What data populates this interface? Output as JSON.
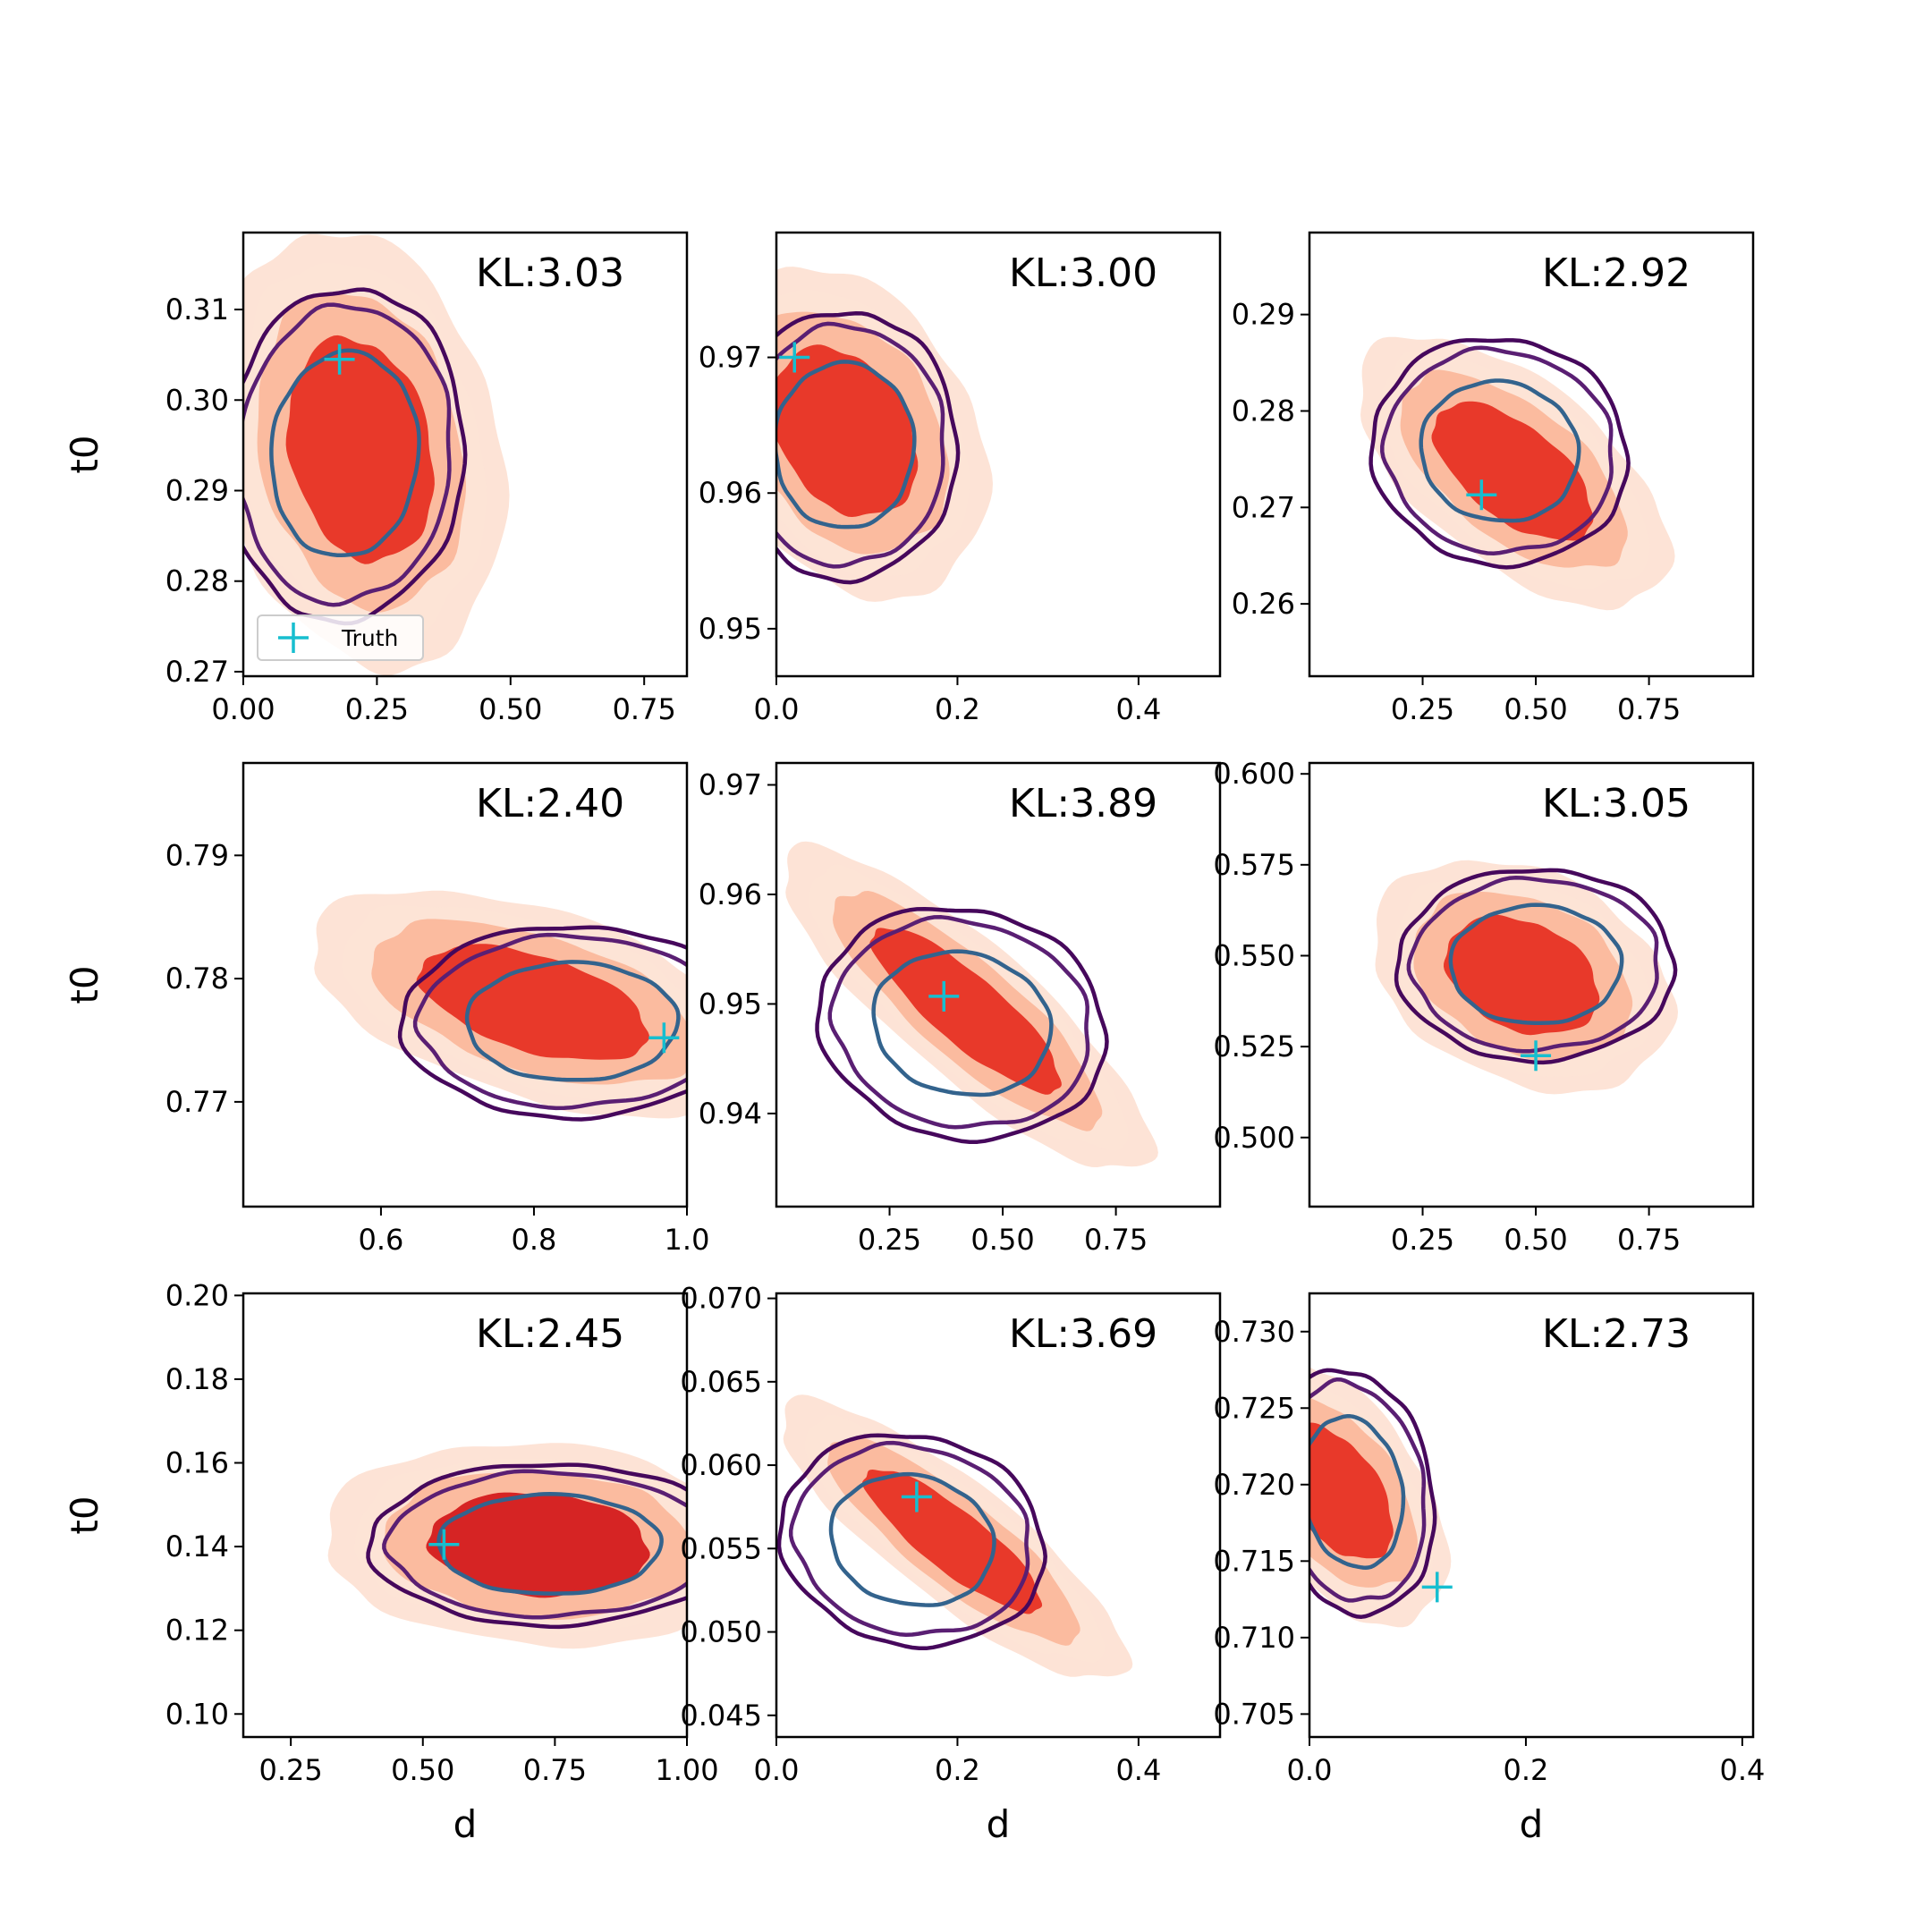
{
  "chart_data": {
    "type": "grid of 2D density contour plots",
    "layout": {
      "rows": 3,
      "cols": 3
    },
    "xlabel": "d",
    "ylabel": "t0",
    "legend": {
      "label": "Truth",
      "placement": "lower-left of first panel",
      "marker": "+",
      "color": "#17becf"
    },
    "colors": {
      "filled_light": "#fde3d6",
      "filled_mid": "#fbbb9f",
      "filled_dark": "#e8392a",
      "filled_darkest": "#d62424",
      "line_outer": "#46085c",
      "line_mid": "#5a1f73",
      "line_inner": "#33638d",
      "truth_marker": "#17becf"
    },
    "panels": [
      {
        "kl_text": "KL:3.03",
        "xlim": [
          0.0,
          0.83
        ],
        "ylim": [
          0.2695,
          0.3185
        ],
        "xticks": [
          {
            "v": 0.0,
            "label": "0.00"
          },
          {
            "v": 0.25,
            "label": "0.25"
          },
          {
            "v": 0.5,
            "label": "0.50"
          },
          {
            "v": 0.75,
            "label": "0.75"
          }
        ],
        "yticks": [
          {
            "v": 0.27,
            "label": "0.27"
          },
          {
            "v": 0.28,
            "label": "0.28"
          },
          {
            "v": 0.29,
            "label": "0.29"
          },
          {
            "v": 0.3,
            "label": "0.30"
          },
          {
            "v": 0.31,
            "label": "0.31"
          }
        ],
        "truth": [
          0.18,
          0.3045
        ],
        "filled": {
          "cx": 0.22,
          "cy": 0.2945,
          "sx": 0.105,
          "sy": 0.0095,
          "rho": -0.2
        },
        "lines": {
          "cx": 0.19,
          "cy": 0.294,
          "sx": 0.095,
          "sy": 0.0078,
          "rho": 0.05
        }
      },
      {
        "kl_text": "KL:3.00",
        "xlim": [
          0.0,
          0.49
        ],
        "ylim": [
          0.9465,
          0.9792
        ],
        "xticks": [
          {
            "v": 0.0,
            "label": "0.0"
          },
          {
            "v": 0.2,
            "label": "0.2"
          },
          {
            "v": 0.4,
            "label": "0.4"
          }
        ],
        "yticks": [
          {
            "v": 0.95,
            "label": "0.95"
          },
          {
            "v": 0.96,
            "label": "0.96"
          },
          {
            "v": 0.97,
            "label": "0.97"
          }
        ],
        "truth": [
          0.02,
          0.97
        ],
        "filled": {
          "cx": 0.075,
          "cy": 0.9645,
          "sx": 0.062,
          "sy": 0.0048,
          "rho": -0.3
        },
        "lines": {
          "cx": 0.075,
          "cy": 0.9635,
          "sx": 0.053,
          "sy": 0.0042,
          "rho": 0.0
        }
      },
      {
        "kl_text": "KL:2.92",
        "xlim": [
          0.0,
          0.98
        ],
        "ylim": [
          0.2525,
          0.2985
        ],
        "xticks": [
          {
            "v": 0.25,
            "label": "0.25"
          },
          {
            "v": 0.5,
            "label": "0.50"
          },
          {
            "v": 0.75,
            "label": "0.75"
          }
        ],
        "yticks": [
          {
            "v": 0.26,
            "label": "0.26"
          },
          {
            "v": 0.27,
            "label": "0.27"
          },
          {
            "v": 0.28,
            "label": "0.28"
          },
          {
            "v": 0.29,
            "label": "0.29"
          }
        ],
        "truth": [
          0.38,
          0.2713
        ],
        "filled": {
          "cx": 0.45,
          "cy": 0.2737,
          "sx": 0.135,
          "sy": 0.0055,
          "rho": -0.6
        },
        "lines": {
          "cx": 0.42,
          "cy": 0.2758,
          "sx": 0.12,
          "sy": 0.005,
          "rho": -0.05
        }
      },
      {
        "kl_text": "KL:2.40",
        "xlim": [
          0.42,
          1.0
        ],
        "ylim": [
          0.7615,
          0.7975
        ],
        "xticks": [
          {
            "v": 0.6,
            "label": "0.6"
          },
          {
            "v": 0.8,
            "label": "0.8"
          },
          {
            "v": 1.0,
            "label": "1.0"
          }
        ],
        "yticks": [
          {
            "v": 0.77,
            "label": "0.77"
          },
          {
            "v": 0.78,
            "label": "0.78"
          },
          {
            "v": 0.79,
            "label": "0.79"
          }
        ],
        "truth": [
          0.97,
          0.7752
        ],
        "filled": {
          "cx": 0.8,
          "cy": 0.778,
          "sx": 0.115,
          "sy": 0.0036,
          "rho": -0.5
        },
        "lines": {
          "cx": 0.85,
          "cy": 0.7765,
          "sx": 0.095,
          "sy": 0.0033,
          "rho": 0.0
        }
      },
      {
        "kl_text": "KL:3.89",
        "xlim": [
          0.0,
          0.98
        ],
        "ylim": [
          0.9315,
          0.972
        ],
        "xticks": [
          {
            "v": 0.25,
            "label": "0.25"
          },
          {
            "v": 0.5,
            "label": "0.50"
          },
          {
            "v": 0.75,
            "label": "0.75"
          }
        ],
        "yticks": [
          {
            "v": 0.94,
            "label": "0.94"
          },
          {
            "v": 0.95,
            "label": "0.95"
          },
          {
            "v": 0.96,
            "label": "0.96"
          },
          {
            "v": 0.97,
            "label": "0.97"
          }
        ],
        "truth": [
          0.37,
          0.9507
        ],
        "filled": {
          "cx": 0.42,
          "cy": 0.9495,
          "sx": 0.16,
          "sy": 0.0058,
          "rho": -0.85
        },
        "lines": {
          "cx": 0.41,
          "cy": 0.9482,
          "sx": 0.135,
          "sy": 0.0045,
          "rho": -0.1
        }
      },
      {
        "kl_text": "KL:3.05",
        "xlim": [
          0.0,
          0.98
        ],
        "ylim": [
          0.481,
          0.603
        ],
        "xticks": [
          {
            "v": 0.25,
            "label": "0.25"
          },
          {
            "v": 0.5,
            "label": "0.50"
          },
          {
            "v": 0.75,
            "label": "0.75"
          }
        ],
        "yticks": [
          {
            "v": 0.5,
            "label": "0.500"
          },
          {
            "v": 0.525,
            "label": "0.525"
          },
          {
            "v": 0.55,
            "label": "0.550"
          },
          {
            "v": 0.575,
            "label": "0.575"
          },
          {
            "v": 0.6,
            "label": "0.600"
          }
        ],
        "truth": [
          0.5,
          0.5225
        ],
        "filled": {
          "cx": 0.47,
          "cy": 0.5445,
          "sx": 0.13,
          "sy": 0.0125,
          "rho": -0.3
        },
        "lines": {
          "cx": 0.5,
          "cy": 0.5475,
          "sx": 0.13,
          "sy": 0.0112,
          "rho": 0.0
        }
      },
      {
        "kl_text": "KL:2.45",
        "xlim": [
          0.16,
          1.0
        ],
        "ylim": [
          0.0945,
          0.2005
        ],
        "xticks": [
          {
            "v": 0.25,
            "label": "0.25"
          },
          {
            "v": 0.5,
            "label": "0.50"
          },
          {
            "v": 0.75,
            "label": "0.75"
          },
          {
            "v": 1.0,
            "label": "1.00"
          }
        ],
        "yticks": [
          {
            "v": 0.1,
            "label": "0.10"
          },
          {
            "v": 0.12,
            "label": "0.12"
          },
          {
            "v": 0.14,
            "label": "0.14"
          },
          {
            "v": 0.16,
            "label": "0.16"
          },
          {
            "v": 0.18,
            "label": "0.18"
          },
          {
            "v": 0.2,
            "label": "0.20"
          }
        ],
        "truth": [
          0.54,
          0.1405
        ],
        "filled": {
          "cx": 0.72,
          "cy": 0.1405,
          "sx": 0.16,
          "sy": 0.0095,
          "rho": -0.1
        },
        "lines": {
          "cx": 0.74,
          "cy": 0.1405,
          "sx": 0.145,
          "sy": 0.0082,
          "rho": 0.0
        }
      },
      {
        "kl_text": "KL:3.69",
        "xlim": [
          0.0,
          0.49
        ],
        "ylim": [
          0.0437,
          0.0703
        ],
        "xticks": [
          {
            "v": 0.0,
            "label": "0.0"
          },
          {
            "v": 0.2,
            "label": "0.2"
          },
          {
            "v": 0.4,
            "label": "0.4"
          }
        ],
        "yticks": [
          {
            "v": 0.045,
            "label": "0.045"
          },
          {
            "v": 0.05,
            "label": "0.050"
          },
          {
            "v": 0.055,
            "label": "0.055"
          },
          {
            "v": 0.06,
            "label": "0.060"
          },
          {
            "v": 0.065,
            "label": "0.065"
          },
          {
            "v": 0.07,
            "label": "0.070"
          }
        ],
        "truth": [
          0.155,
          0.0581
        ],
        "filled": {
          "cx": 0.195,
          "cy": 0.0555,
          "sx": 0.075,
          "sy": 0.0033,
          "rho": -0.85
        },
        "lines": {
          "cx": 0.15,
          "cy": 0.0555,
          "sx": 0.062,
          "sy": 0.0027,
          "rho": -0.1
        }
      },
      {
        "kl_text": "KL:2.73",
        "xlim": [
          0.0,
          0.41
        ],
        "ylim": [
          0.7035,
          0.7325
        ],
        "xticks": [
          {
            "v": 0.0,
            "label": "0.0"
          },
          {
            "v": 0.2,
            "label": "0.2"
          },
          {
            "v": 0.4,
            "label": "0.4"
          }
        ],
        "yticks": [
          {
            "v": 0.705,
            "label": "0.705"
          },
          {
            "v": 0.71,
            "label": "0.710"
          },
          {
            "v": 0.715,
            "label": "0.715"
          },
          {
            "v": 0.72,
            "label": "0.720"
          },
          {
            "v": 0.725,
            "label": "0.725"
          },
          {
            "v": 0.73,
            "label": "0.730"
          }
        ],
        "truth": [
          0.118,
          0.7133
        ],
        "filled": {
          "cx": 0.025,
          "cy": 0.7195,
          "sx": 0.04,
          "sy": 0.0034,
          "rho": -0.5
        },
        "lines": {
          "cx": 0.04,
          "cy": 0.7195,
          "sx": 0.032,
          "sy": 0.0034,
          "rho": -0.15
        }
      }
    ]
  }
}
